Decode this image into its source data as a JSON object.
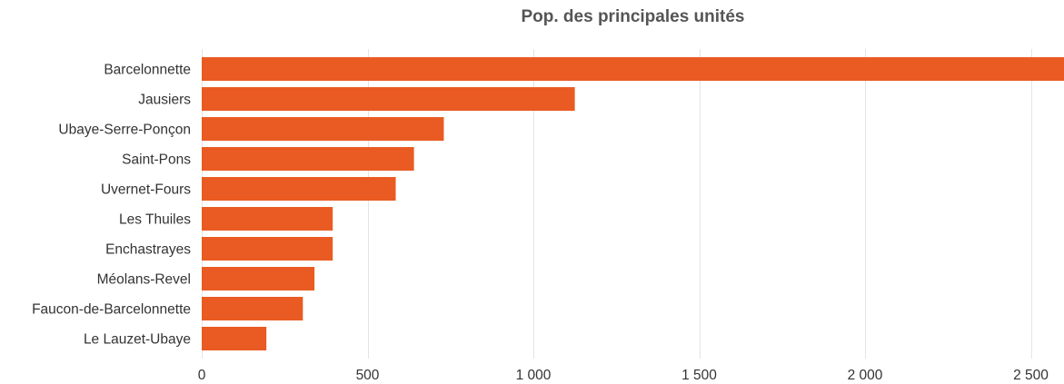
{
  "chart_data": {
    "type": "bar",
    "orientation": "horizontal",
    "title": "Pop. des principales unités",
    "xlabel": "",
    "ylabel": "",
    "categories": [
      "Barcelonnette",
      "Jausiers",
      "Ubaye-Serre-Ponçon",
      "Saint-Pons",
      "Uvernet-Fours",
      "Les Thuiles",
      "Enchastrayes",
      "Méolans-Revel",
      "Faucon-de-Barcelonnette",
      "Le Lauzet-Ubaye"
    ],
    "values": [
      2600,
      1125,
      730,
      640,
      585,
      395,
      395,
      340,
      305,
      195
    ],
    "xlim": [
      0,
      2600
    ],
    "xticks": [
      0,
      500,
      1000,
      1500,
      2000,
      2500
    ],
    "xtick_labels": [
      "0",
      "500",
      "1 000",
      "1 500",
      "2 000",
      "2 500"
    ],
    "grid": true,
    "legend": "none",
    "bar_color": "#e95b22",
    "grid_color": "#e4e4e4"
  }
}
